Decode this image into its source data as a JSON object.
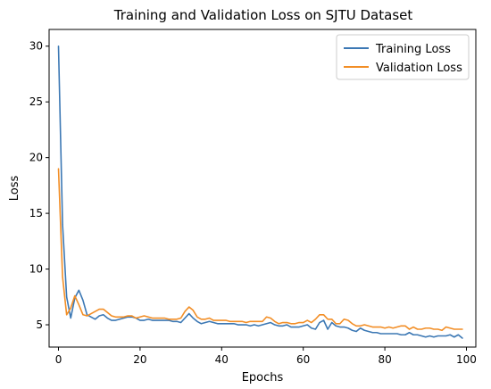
{
  "colors": {
    "training": "#3c78b4",
    "validation": "#f28e26",
    "axes": "#000000",
    "background": "#ffffff"
  },
  "chart_data": {
    "type": "line",
    "title": "Training and Validation Loss on SJTU Dataset",
    "xlabel": "Epochs",
    "ylabel": "Loss",
    "xlim": [
      -2.3,
      102.3
    ],
    "ylim": [
      3.0,
      31.5
    ],
    "xticks": [
      0,
      20,
      40,
      60,
      80,
      100
    ],
    "yticks": [
      5,
      10,
      15,
      20,
      25,
      30
    ],
    "grid": false,
    "legend_position": "top-right",
    "x": [
      0,
      1,
      2,
      3,
      4,
      5,
      6,
      7,
      8,
      9,
      10,
      11,
      12,
      13,
      14,
      15,
      16,
      17,
      18,
      19,
      20,
      21,
      22,
      23,
      24,
      25,
      26,
      27,
      28,
      29,
      30,
      31,
      32,
      33,
      34,
      35,
      36,
      37,
      38,
      39,
      40,
      41,
      42,
      43,
      44,
      45,
      46,
      47,
      48,
      49,
      50,
      51,
      52,
      53,
      54,
      55,
      56,
      57,
      58,
      59,
      60,
      61,
      62,
      63,
      64,
      65,
      66,
      67,
      68,
      69,
      70,
      71,
      72,
      73,
      74,
      75,
      76,
      77,
      78,
      79,
      80,
      81,
      82,
      83,
      84,
      85,
      86,
      87,
      88,
      89,
      90,
      91,
      92,
      93,
      94,
      95,
      96,
      97,
      98,
      99
    ],
    "series": [
      {
        "name": "Training Loss",
        "color": "#3c78b4",
        "values": [
          30.0,
          14.0,
          7.5,
          5.6,
          7.4,
          8.1,
          7.2,
          5.9,
          5.7,
          5.5,
          5.8,
          5.9,
          5.6,
          5.4,
          5.4,
          5.5,
          5.6,
          5.7,
          5.7,
          5.6,
          5.4,
          5.4,
          5.5,
          5.4,
          5.4,
          5.4,
          5.4,
          5.4,
          5.3,
          5.3,
          5.2,
          5.6,
          6.0,
          5.6,
          5.3,
          5.1,
          5.2,
          5.3,
          5.2,
          5.1,
          5.1,
          5.1,
          5.1,
          5.1,
          5.0,
          5.0,
          5.0,
          4.9,
          5.0,
          4.9,
          5.0,
          5.1,
          5.2,
          5.0,
          4.9,
          4.9,
          5.0,
          4.8,
          4.8,
          4.8,
          4.9,
          5.0,
          4.7,
          4.6,
          5.2,
          5.4,
          4.6,
          5.2,
          4.9,
          4.8,
          4.8,
          4.7,
          4.5,
          4.4,
          4.7,
          4.5,
          4.4,
          4.3,
          4.3,
          4.2,
          4.2,
          4.2,
          4.2,
          4.2,
          4.1,
          4.1,
          4.3,
          4.1,
          4.1,
          4.0,
          3.9,
          4.0,
          3.9,
          4.0,
          4.0,
          4.0,
          4.1,
          3.9,
          4.1,
          3.8
        ]
      },
      {
        "name": "Validation Loss",
        "color": "#f28e26",
        "values": [
          19.0,
          9.3,
          5.9,
          6.5,
          7.6,
          6.8,
          5.9,
          5.8,
          6.0,
          6.2,
          6.4,
          6.4,
          6.1,
          5.8,
          5.7,
          5.7,
          5.7,
          5.8,
          5.8,
          5.6,
          5.7,
          5.8,
          5.7,
          5.6,
          5.6,
          5.6,
          5.6,
          5.5,
          5.5,
          5.5,
          5.6,
          6.2,
          6.6,
          6.3,
          5.7,
          5.5,
          5.5,
          5.6,
          5.4,
          5.4,
          5.4,
          5.4,
          5.3,
          5.3,
          5.3,
          5.3,
          5.2,
          5.3,
          5.3,
          5.3,
          5.3,
          5.7,
          5.6,
          5.3,
          5.1,
          5.2,
          5.2,
          5.1,
          5.1,
          5.2,
          5.2,
          5.4,
          5.2,
          5.5,
          5.9,
          5.9,
          5.5,
          5.5,
          5.1,
          5.1,
          5.5,
          5.4,
          5.1,
          4.9,
          4.9,
          5.0,
          4.9,
          4.8,
          4.8,
          4.8,
          4.7,
          4.8,
          4.7,
          4.8,
          4.9,
          4.9,
          4.6,
          4.8,
          4.6,
          4.6,
          4.7,
          4.7,
          4.6,
          4.6,
          4.5,
          4.8,
          4.7,
          4.6,
          4.6,
          4.6
        ]
      }
    ]
  }
}
